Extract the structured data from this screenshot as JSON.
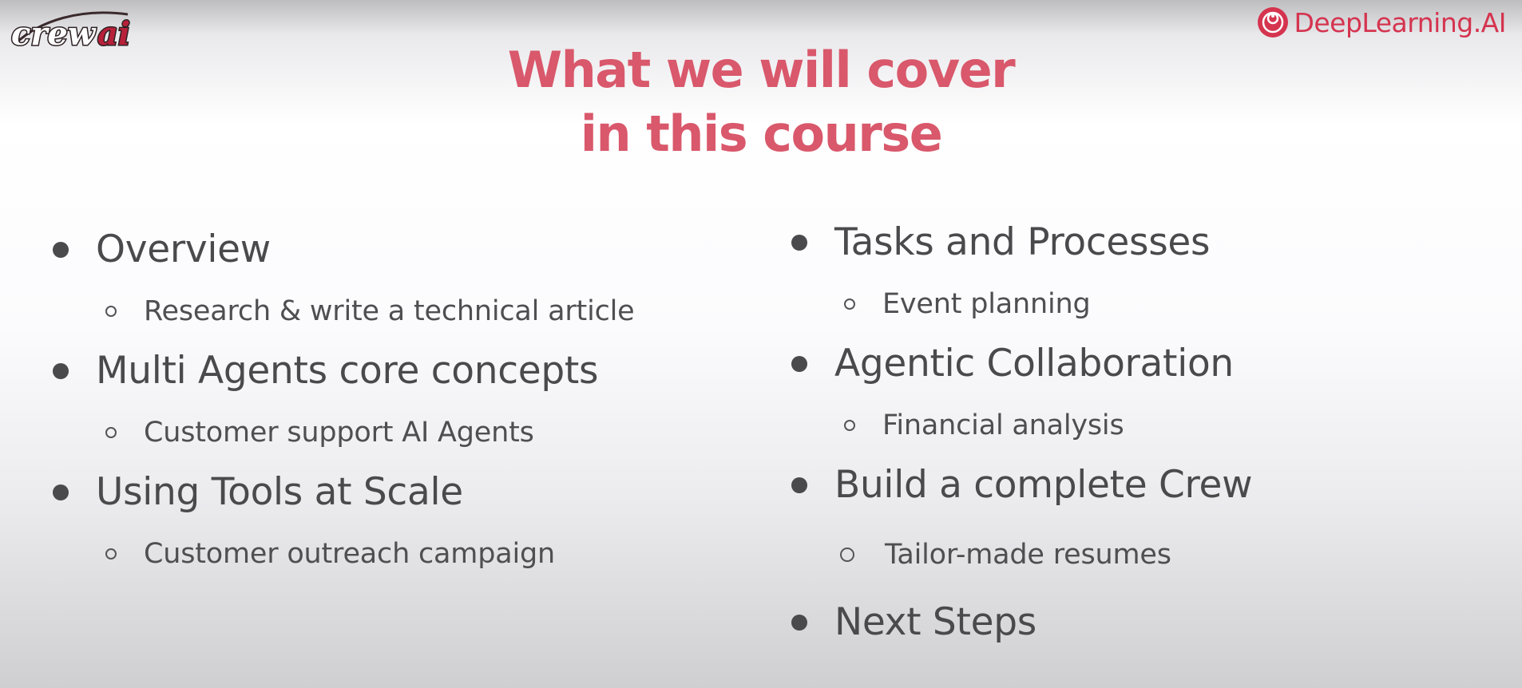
{
  "header": {
    "left_logo_text": "crewai",
    "right_logo_text": "DeepLearning.AI",
    "brand_color": "#d5344f"
  },
  "title": {
    "line1": "What we will cover",
    "line2": "in this course",
    "color": "#d9586b"
  },
  "outline": {
    "left": [
      {
        "label": "Overview",
        "sub": "Research & write a technical article"
      },
      {
        "label": "Multi Agents core concepts",
        "sub": "Customer support AI Agents"
      },
      {
        "label": "Using Tools at Scale",
        "sub": "Customer outreach campaign"
      }
    ],
    "right": [
      {
        "label": "Tasks and Processes",
        "sub": "Event planning"
      },
      {
        "label": "Agentic Collaboration",
        "sub": "Financial analysis"
      },
      {
        "label": "Build a complete Crew",
        "sub": "Tailor-made resumes"
      },
      {
        "label": "Next Steps"
      }
    ]
  }
}
